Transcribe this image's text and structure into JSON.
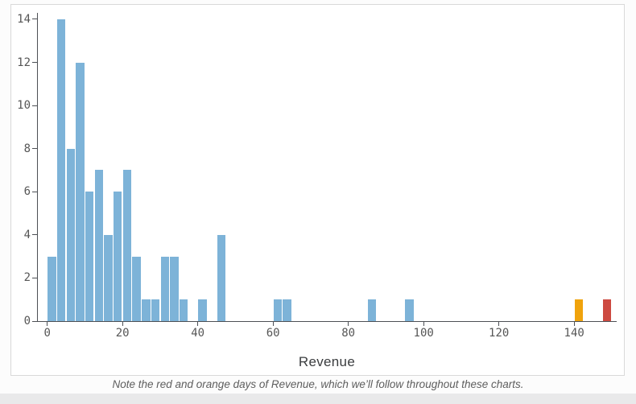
{
  "page": {
    "caption": "Note the red and orange days of Revenue, which we’ll follow throughout these charts.",
    "background": "#fcfcfc",
    "bottom_strip_color": "#e9e9ea"
  },
  "chart_data": {
    "type": "bar",
    "subtype": "histogram",
    "title": "",
    "xlabel": "Revenue",
    "ylabel": "",
    "xlim": [
      -3,
      153
    ],
    "ylim": [
      0,
      14
    ],
    "x_ticks": [
      0,
      20,
      40,
      60,
      80,
      100,
      120,
      140
    ],
    "y_ticks": [
      0,
      2,
      4,
      6,
      8,
      10,
      12,
      14
    ],
    "grid": false,
    "legend": "none",
    "bin_width": 2.5,
    "colors": {
      "blue": "#7db3d8",
      "orange": "#f0a30c",
      "red": "#cd4a41",
      "axis": "#4d5055",
      "tick_label": "#565656"
    },
    "bins": [
      {
        "start": 0,
        "count": 3,
        "color": "blue"
      },
      {
        "start": 2.5,
        "count": 14,
        "color": "blue"
      },
      {
        "start": 5,
        "count": 8,
        "color": "blue"
      },
      {
        "start": 7.5,
        "count": 12,
        "color": "blue"
      },
      {
        "start": 10,
        "count": 6,
        "color": "blue"
      },
      {
        "start": 12.5,
        "count": 7,
        "color": "blue"
      },
      {
        "start": 15,
        "count": 4,
        "color": "blue"
      },
      {
        "start": 17.5,
        "count": 6,
        "color": "blue"
      },
      {
        "start": 20,
        "count": 7,
        "color": "blue"
      },
      {
        "start": 22.5,
        "count": 3,
        "color": "blue"
      },
      {
        "start": 25,
        "count": 1,
        "color": "blue"
      },
      {
        "start": 27.5,
        "count": 1,
        "color": "blue"
      },
      {
        "start": 30,
        "count": 3,
        "color": "blue"
      },
      {
        "start": 32.5,
        "count": 3,
        "color": "blue"
      },
      {
        "start": 35,
        "count": 1,
        "color": "blue"
      },
      {
        "start": 40,
        "count": 1,
        "color": "blue"
      },
      {
        "start": 45,
        "count": 4,
        "color": "blue"
      },
      {
        "start": 60,
        "count": 1,
        "color": "blue"
      },
      {
        "start": 62.5,
        "count": 1,
        "color": "blue"
      },
      {
        "start": 85,
        "count": 1,
        "color": "blue"
      },
      {
        "start": 95,
        "count": 1,
        "color": "blue"
      },
      {
        "start": 140,
        "count": 1,
        "color": "orange"
      },
      {
        "start": 147.5,
        "count": 1,
        "color": "red"
      }
    ]
  }
}
